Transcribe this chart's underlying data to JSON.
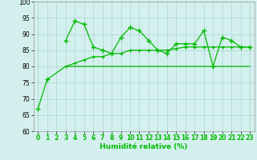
{
  "background_color": "#d4f0ee",
  "grid_color": "#a8d4d0",
  "line_color": "#00bb00",
  "xlabel": "Humidité relative (%)",
  "ylim": [
    60,
    100
  ],
  "yticks": [
    60,
    65,
    70,
    75,
    80,
    85,
    90,
    95,
    100
  ],
  "xticks": [
    0,
    1,
    2,
    3,
    4,
    5,
    6,
    7,
    8,
    9,
    10,
    11,
    12,
    13,
    14,
    15,
    16,
    17,
    18,
    19,
    20,
    21,
    22,
    23
  ],
  "line1_x": [
    0,
    1,
    3,
    4,
    5,
    6,
    7,
    8,
    9,
    10,
    11,
    12,
    13,
    14,
    15,
    16,
    17,
    18,
    19,
    20,
    21,
    22,
    23
  ],
  "line1_y": [
    67,
    76,
    80,
    80,
    80,
    80,
    80,
    80,
    80,
    80,
    80,
    80,
    80,
    80,
    80,
    80,
    80,
    80,
    80,
    80,
    80,
    80,
    80
  ],
  "line2_x": [
    3,
    4,
    5,
    6,
    7,
    8,
    9,
    10,
    11,
    12,
    13,
    14,
    15,
    16,
    17,
    18,
    19,
    20,
    21,
    22,
    23
  ],
  "line2_y": [
    88,
    94,
    93,
    86,
    85,
    84,
    89,
    92,
    91,
    88,
    85,
    84,
    87,
    87,
    87,
    91,
    80,
    89,
    88,
    86,
    86
  ],
  "line3_x": [
    3,
    4,
    5,
    6,
    7,
    8,
    9,
    10,
    11,
    12,
    13,
    14,
    15,
    16,
    17,
    18,
    19,
    20,
    21,
    22,
    23
  ],
  "line3_y": [
    80,
    81,
    82,
    83,
    83,
    84,
    84,
    85,
    85,
    85,
    85,
    85,
    85.5,
    86,
    86,
    86,
    86,
    86,
    86,
    86,
    86
  ],
  "tick_fontsize": 5.5,
  "xlabel_fontsize": 6.5,
  "lw": 0.9,
  "ms": 3.0
}
